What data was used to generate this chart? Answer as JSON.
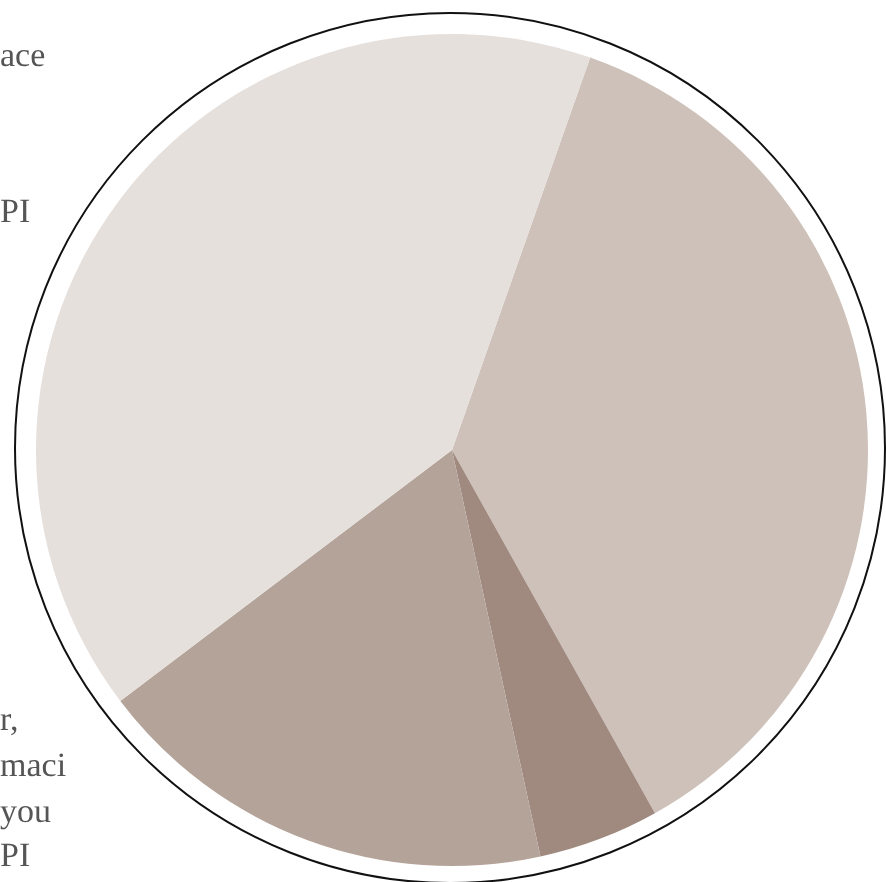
{
  "chart_data": {
    "type": "pie",
    "categories": [
      null,
      null,
      null,
      null
    ],
    "values": [
      36.5,
      4.7,
      18.1,
      40.7
    ],
    "colors": [
      "#cec1b9",
      "#a08a7f",
      "#b4a399",
      "#e6e0dd"
    ],
    "legend": false,
    "annotations": [
      "ace",
      "PI",
      "r,",
      "maci",
      "you",
      "PI"
    ]
  }
}
